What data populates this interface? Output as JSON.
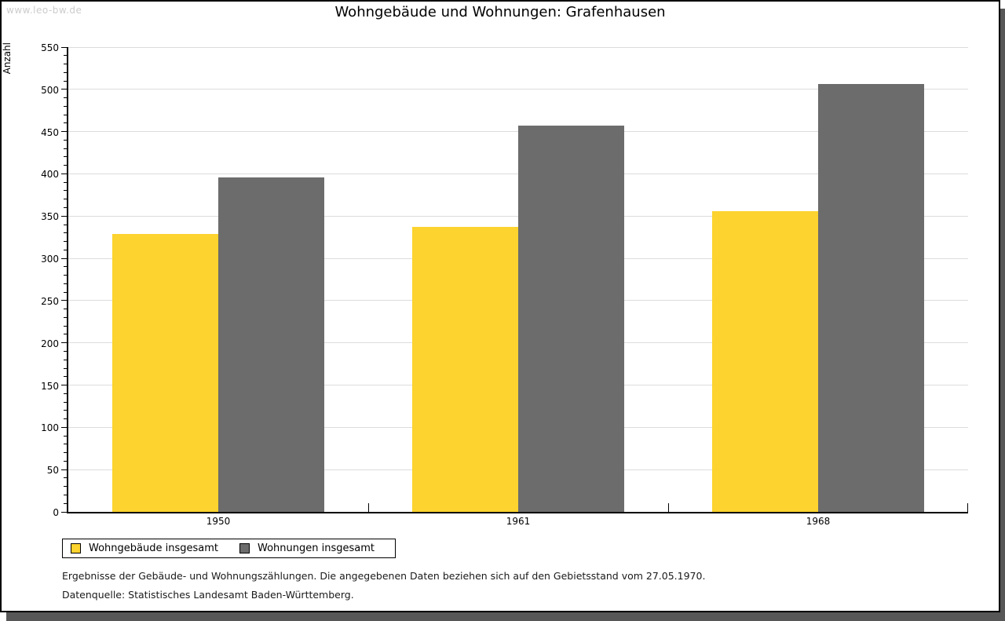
{
  "watermark": "www.leo-bw.de",
  "title": "Wohngebäude und Wohnungen: Grafenhausen",
  "footnotes": {
    "line1": "Ergebnisse der Gebäude- und Wohnungszählungen. Die angegebenen Daten beziehen sich auf den Gebietsstand vom 27.05.1970.",
    "line2": "Datenquelle: Statistisches Landesamt Baden-Württemberg."
  },
  "colors": {
    "series1": "#fcd32f",
    "series2": "#6c6c6c",
    "gridline": "#dcdcdc",
    "axis": "#000000",
    "watermark": "#cccccc",
    "frame_shadow": "#575757"
  },
  "chart_data": {
    "type": "bar",
    "title": "Wohngebäude und Wohnungen: Grafenhausen",
    "xlabel": "",
    "ylabel": "Anzahl",
    "categories": [
      "1950",
      "1961",
      "1968"
    ],
    "series": [
      {
        "name": "Wohngebäude insgesamt",
        "color": "#fcd32f",
        "values": [
          329,
          337,
          356
        ]
      },
      {
        "name": "Wohnungen insgesamt",
        "color": "#6c6c6c",
        "values": [
          396,
          457,
          506
        ]
      }
    ],
    "ylim": [
      0,
      550
    ],
    "ytick_major": 50,
    "ytick_minor": 10,
    "grid": true,
    "legend_position": "bottom-left"
  }
}
